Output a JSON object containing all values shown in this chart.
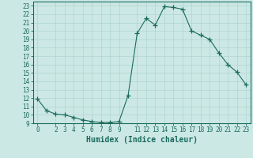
{
  "x": [
    0,
    1,
    2,
    3,
    4,
    5,
    6,
    7,
    8,
    9,
    10,
    11,
    12,
    13,
    14,
    15,
    16,
    17,
    18,
    19,
    20,
    21,
    22,
    23
  ],
  "y": [
    11.9,
    10.5,
    10.1,
    10.0,
    9.7,
    9.4,
    9.2,
    9.1,
    9.1,
    9.2,
    12.3,
    19.7,
    21.5,
    20.7,
    22.9,
    22.8,
    22.6,
    20.0,
    19.5,
    19.0,
    17.4,
    16.0,
    15.1,
    13.6
  ],
  "line_color": "#1a6b5e",
  "marker": "+",
  "marker_size": 4,
  "bg_color": "#cce8e5",
  "grid_color": "#afd4d0",
  "xlabel": "Humidex (Indice chaleur)",
  "xlim": [
    -0.5,
    23.5
  ],
  "ylim": [
    9,
    23.5
  ],
  "yticks": [
    9,
    10,
    11,
    12,
    13,
    14,
    15,
    16,
    17,
    18,
    19,
    20,
    21,
    22,
    23
  ],
  "xticks": [
    0,
    2,
    3,
    4,
    5,
    6,
    7,
    8,
    9,
    11,
    12,
    13,
    14,
    15,
    16,
    17,
    18,
    19,
    20,
    21,
    22,
    23
  ],
  "tick_label_fontsize": 5.5,
  "xlabel_fontsize": 7.0,
  "axis_color": "#1a6b5e",
  "linewidth": 0.8,
  "marker_linewidth": 0.9
}
